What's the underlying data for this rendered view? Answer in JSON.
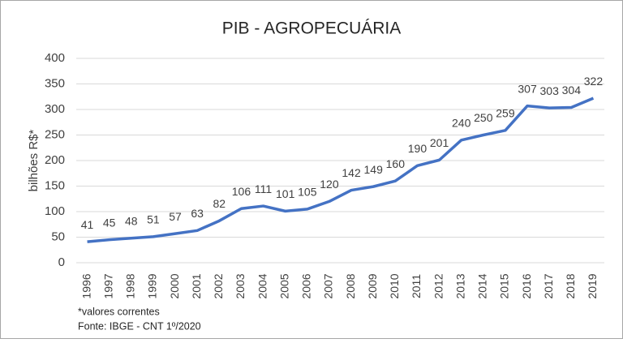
{
  "chart_data": {
    "type": "line",
    "title": "PIB - AGROPECUÁRIA",
    "y_label": "bilhões R$*",
    "categories": [
      "1996",
      "1997",
      "1998",
      "1999",
      "2000",
      "2001",
      "2002",
      "2003",
      "2004",
      "2005",
      "2006",
      "2007",
      "2008",
      "2009",
      "2010",
      "2011",
      "2012",
      "2013",
      "2014",
      "2015",
      "2016",
      "2017",
      "2018",
      "2019"
    ],
    "series": [
      {
        "name": "PIB - Agropecuária",
        "color": "#4472c4",
        "values": [
          41,
          45,
          48,
          51,
          57,
          63,
          82,
          106,
          111,
          101,
          105,
          120,
          142,
          149,
          160,
          190,
          201,
          240,
          250,
          259,
          307,
          303,
          304,
          322
        ]
      }
    ],
    "ylim": [
      0,
      400
    ],
    "yticks": [
      0,
      50,
      100,
      150,
      200,
      250,
      300,
      350,
      400
    ],
    "grid": true,
    "notes": [
      "*valores correntes",
      "Fonte: IBGE - CNT 1º/2020"
    ]
  }
}
